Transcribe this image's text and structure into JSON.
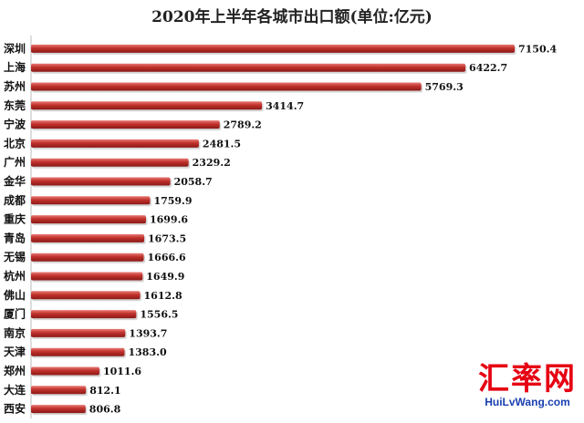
{
  "chart_data": {
    "type": "bar",
    "orientation": "horizontal",
    "title": "2020年上半年各城市出口额(单位:亿元)",
    "categories": [
      "深圳",
      "上海",
      "苏州",
      "东莞",
      "宁波",
      "北京",
      "广州",
      "金华",
      "成都",
      "重庆",
      "青岛",
      "无锡",
      "杭州",
      "佛山",
      "厦门",
      "南京",
      "天津",
      "郑州",
      "大连",
      "西安"
    ],
    "values": [
      7150.4,
      6422.7,
      5769.3,
      3414.7,
      2789.2,
      2481.5,
      2329.2,
      2058.7,
      1759.9,
      1699.6,
      1673.5,
      1666.6,
      1649.9,
      1612.8,
      1556.5,
      1393.7,
      1383.0,
      1011.6,
      812.1,
      806.8
    ],
    "value_labels": [
      "7150.4",
      "6422.7",
      "5769.3",
      "3414.7",
      "2789.2",
      "2481.5",
      "2329.2",
      "2058.7",
      "1759.9",
      "1699.6",
      "1673.5",
      "1666.6",
      "1649.9",
      "1612.8",
      "1556.5",
      "1393.7",
      "1383.0",
      "1011.6",
      "812.1",
      "806.8"
    ],
    "xlim": [
      0,
      7150.4
    ],
    "grid": false,
    "bar_color": "#c0302b",
    "bar_highlight": "#e87a74",
    "bar_shadow": "#8a1a17"
  },
  "watermark": {
    "logo": "汇率网",
    "site": "HuiLvWang.com"
  }
}
